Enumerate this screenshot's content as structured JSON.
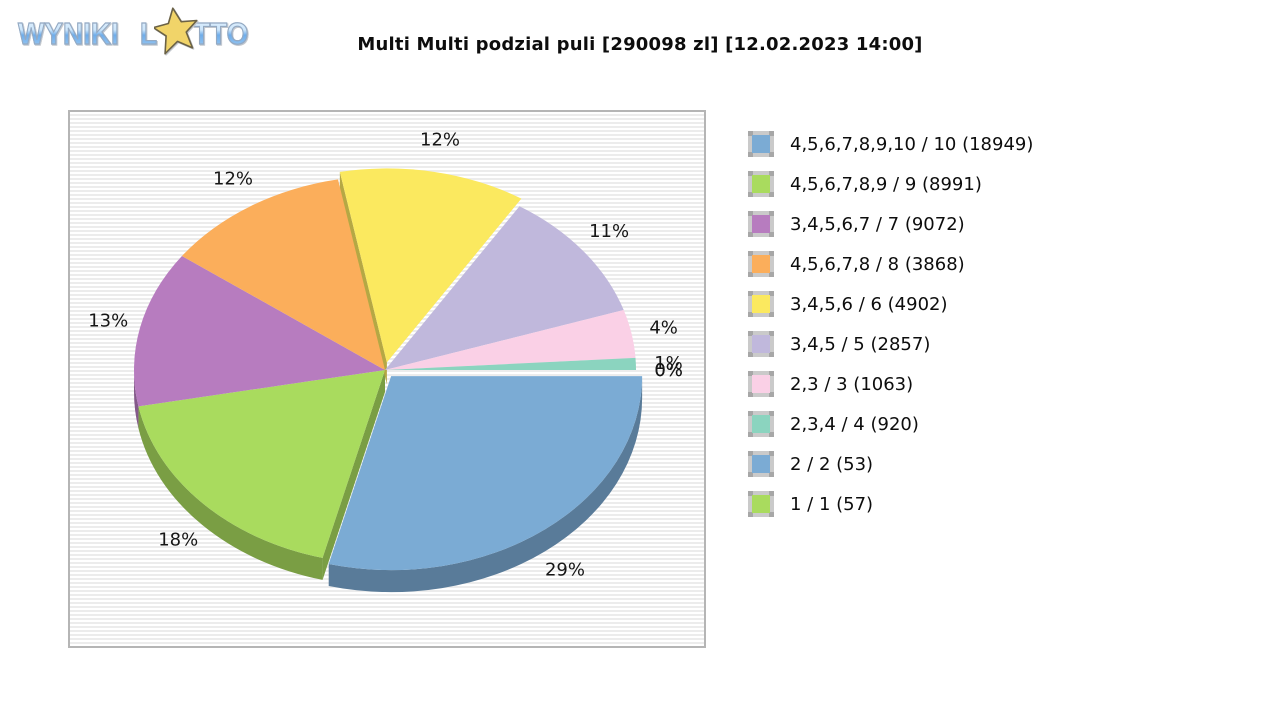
{
  "logo": {
    "word1": "WYNIKI",
    "lotto_l": "L",
    "lotto_rest": "TTO",
    "star_icon_color": "#f1d469"
  },
  "title": "Multi Multi podzial puli [290098 zl] [12.02.2023 14:00]",
  "pool": "290098 zl",
  "drawn_at": "12.02.2023 14:00",
  "chart_data": {
    "type": "pie",
    "style": "3d-exploded",
    "title": "Multi Multi podzial puli [290098 zl] [12.02.2023 14:00]",
    "legend_position": "right",
    "unit": "%",
    "slices": [
      {
        "label": "4,5,6,7,8,9,10 / 10 (18949)",
        "tier": "4,5,6,7,8,9,10 / 10",
        "winners": 18949,
        "pct": 29,
        "pct_label": "29%",
        "color": "#7BABD4",
        "exploded": true
      },
      {
        "label": "4,5,6,7,8,9 / 9 (8991)",
        "tier": "4,5,6,7,8,9 / 9",
        "winners": 8991,
        "pct": 18,
        "pct_label": "18%",
        "color": "#A9DB5E",
        "exploded": false
      },
      {
        "label": "3,4,5,6,7 / 7 (9072)",
        "tier": "3,4,5,6,7 / 7",
        "winners": 9072,
        "pct": 13,
        "pct_label": "13%",
        "color": "#B77CBF",
        "exploded": false
      },
      {
        "label": "4,5,6,7,8 / 8 (3868)",
        "tier": "4,5,6,7,8 / 8",
        "winners": 3868,
        "pct": 12,
        "pct_label": "12%",
        "color": "#FBAE5B",
        "exploded": false
      },
      {
        "label": "3,4,5,6 / 6 (4902)",
        "tier": "3,4,5,6 / 6",
        "winners": 4902,
        "pct": 12,
        "pct_label": "12%",
        "color": "#FBE95F",
        "exploded": true
      },
      {
        "label": "3,4,5 / 5 (2857)",
        "tier": "3,4,5 / 5",
        "winners": 2857,
        "pct": 11,
        "pct_label": "11%",
        "color": "#C0B8DC",
        "exploded": false
      },
      {
        "label": "2,3 / 3 (1063)",
        "tier": "2,3 / 3",
        "winners": 1063,
        "pct": 4,
        "pct_label": "4%",
        "color": "#FAD0E6",
        "exploded": false
      },
      {
        "label": "2,3,4 / 4 (920)",
        "tier": "2,3,4 / 4",
        "winners": 920,
        "pct": 1,
        "pct_label": "1%",
        "color": "#8BD4BF",
        "exploded": false
      },
      {
        "label": "2 / 2 (53)",
        "tier": "2 / 2",
        "winners": 53,
        "pct": 0,
        "pct_label": "0%",
        "color": "#7BABD4",
        "exploded": false
      },
      {
        "label": "1 / 1 (57)",
        "tier": "1 / 1",
        "winners": 57,
        "pct": 0,
        "pct_label": "0%",
        "color": "#A9DB5E",
        "exploded": false
      }
    ]
  }
}
